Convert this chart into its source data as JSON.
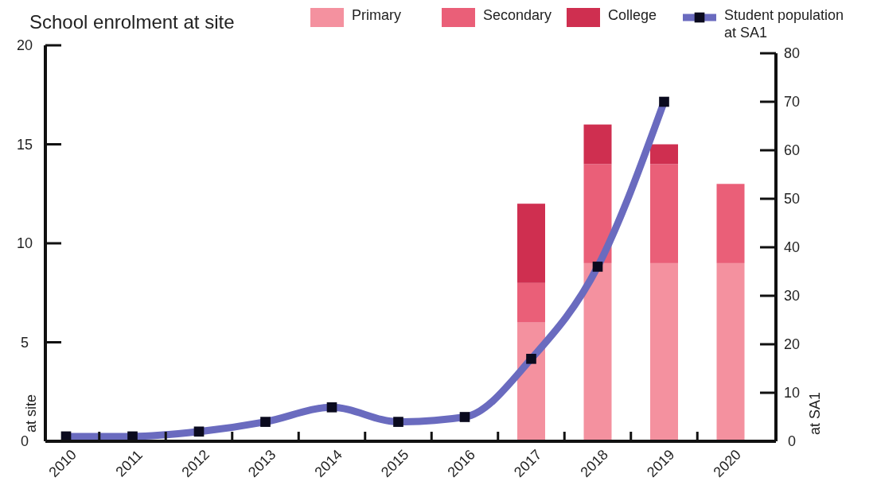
{
  "chart_data": {
    "type": "bar",
    "title": "School enrolment at site",
    "ylabel": "at site",
    "y2label": "at SA1",
    "categories": [
      "2010",
      "2011",
      "2012",
      "2013",
      "2014",
      "2015",
      "2016",
      "2017",
      "2018",
      "2019",
      "2020"
    ],
    "stacked": true,
    "series": [
      {
        "name": "Primary",
        "color": "#f4919f",
        "values": [
          null,
          null,
          null,
          null,
          null,
          null,
          null,
          6,
          9,
          9,
          9
        ]
      },
      {
        "name": "Secondary",
        "color": "#ea5f78",
        "values": [
          null,
          null,
          null,
          null,
          null,
          null,
          null,
          2,
          5,
          5,
          4
        ]
      },
      {
        "name": "College",
        "color": "#cf2f50",
        "values": [
          null,
          null,
          null,
          null,
          null,
          null,
          null,
          4,
          2,
          1,
          null
        ]
      },
      {
        "name": "Student population at SA1",
        "type": "line",
        "axis": "y2",
        "color": "#6a6bbf",
        "values": [
          1,
          1,
          2,
          4,
          7,
          4,
          5,
          17,
          36,
          70,
          null
        ]
      }
    ],
    "ylim": [
      0,
      20
    ],
    "yticks": [
      0,
      5,
      10,
      15,
      20
    ],
    "y2lim": [
      0,
      80
    ],
    "y2ticks": [
      0,
      10,
      20,
      30,
      40,
      50,
      60,
      70,
      80
    ],
    "grid": false,
    "legend": "top",
    "marker": "square"
  }
}
